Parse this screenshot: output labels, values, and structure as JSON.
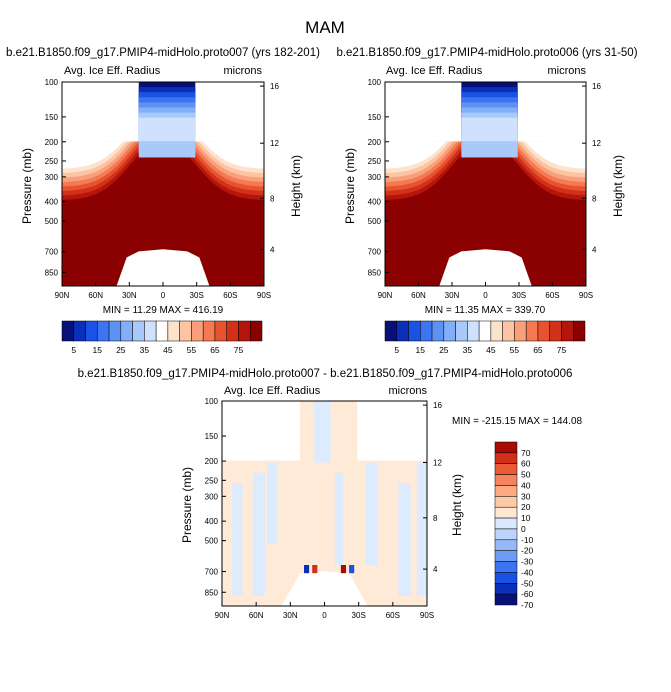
{
  "title": "MAM",
  "colors": {
    "seq": [
      "#08107a",
      "#0a2fb8",
      "#1b52e6",
      "#3d74f2",
      "#5d92f5",
      "#82aff8",
      "#a9c9fb",
      "#cfe1fd",
      "#ffffff",
      "#fde2cc",
      "#fcc4a3",
      "#f9a07a",
      "#f47a53",
      "#e8532f",
      "#d3301a",
      "#b5160c",
      "#8b0000"
    ],
    "div": [
      "#08107a",
      "#0a2fb8",
      "#1b52e6",
      "#3d74f2",
      "#6e9bf5",
      "#97b8f8",
      "#bcd3fb",
      "#dbe8fd",
      "#ffe6d2",
      "#fdcaa9",
      "#fbaa84",
      "#f5835d",
      "#ea5a36",
      "#d3301a",
      "#a80c06"
    ],
    "diff_base": "#ffead8",
    "diff_blue": "#dcebfd"
  },
  "chart_data": [
    {
      "type": "heatmap",
      "title": "b.e21.B1850.f09_g17.PMIP4-midHolo.proto007 (yrs 182-201)",
      "left_label": "Avg. Ice Eff. Radius",
      "right_label": "microns",
      "x_ticks": [
        "90N",
        "60N",
        "30N",
        "0",
        "30S",
        "60S",
        "90S"
      ],
      "y_ticks": [
        "100",
        "150",
        "200",
        "250",
        "300",
        "400",
        "500",
        "700",
        "850"
      ],
      "y2_ticks": [
        "16",
        "12",
        "8",
        "4"
      ],
      "ylabel": "Pressure (mb)",
      "y2label": "Height (km)",
      "minmax": "MIN = 11.29  MAX = 416.19",
      "cbar_labels": [
        "5",
        "15",
        "25",
        "35",
        "45",
        "55",
        "65",
        "75"
      ]
    },
    {
      "type": "heatmap",
      "title": "b.e21.B1850.f09_g17.PMIP4-midHolo.proto006 (yrs 31-50)",
      "left_label": "Avg. Ice Eff. Radius",
      "right_label": "microns",
      "x_ticks": [
        "90N",
        "60N",
        "30N",
        "0",
        "30S",
        "60S",
        "90S"
      ],
      "y_ticks": [
        "100",
        "150",
        "200",
        "250",
        "300",
        "400",
        "500",
        "700",
        "850"
      ],
      "y2_ticks": [
        "16",
        "12",
        "8",
        "4"
      ],
      "ylabel": "Pressure (mb)",
      "y2label": "Height (km)",
      "minmax": "MIN = 11.35  MAX = 339.70",
      "cbar_labels": [
        "5",
        "15",
        "25",
        "35",
        "45",
        "55",
        "65",
        "75"
      ]
    },
    {
      "type": "heatmap",
      "title": "b.e21.B1850.f09_g17.PMIP4-midHolo.proto007 - b.e21.B1850.f09_g17.PMIP4-midHolo.proto006",
      "left_label": "Avg. Ice Eff. Radius",
      "right_label": "microns",
      "x_ticks": [
        "90N",
        "60N",
        "30N",
        "0",
        "30S",
        "60S",
        "90S"
      ],
      "y_ticks": [
        "100",
        "150",
        "200",
        "250",
        "300",
        "400",
        "500",
        "700",
        "850"
      ],
      "y2_ticks": [
        "16",
        "12",
        "8",
        "4"
      ],
      "ylabel": "Pressure (mb)",
      "y2label": "Height (km)",
      "minmax": "MIN = -215.15  MAX = 144.08",
      "cbar_labels": [
        "70",
        "60",
        "50",
        "40",
        "30",
        "20",
        "10",
        "0",
        "-10",
        "-20",
        "-30",
        "-40",
        "-50",
        "-60",
        "-70"
      ]
    }
  ]
}
